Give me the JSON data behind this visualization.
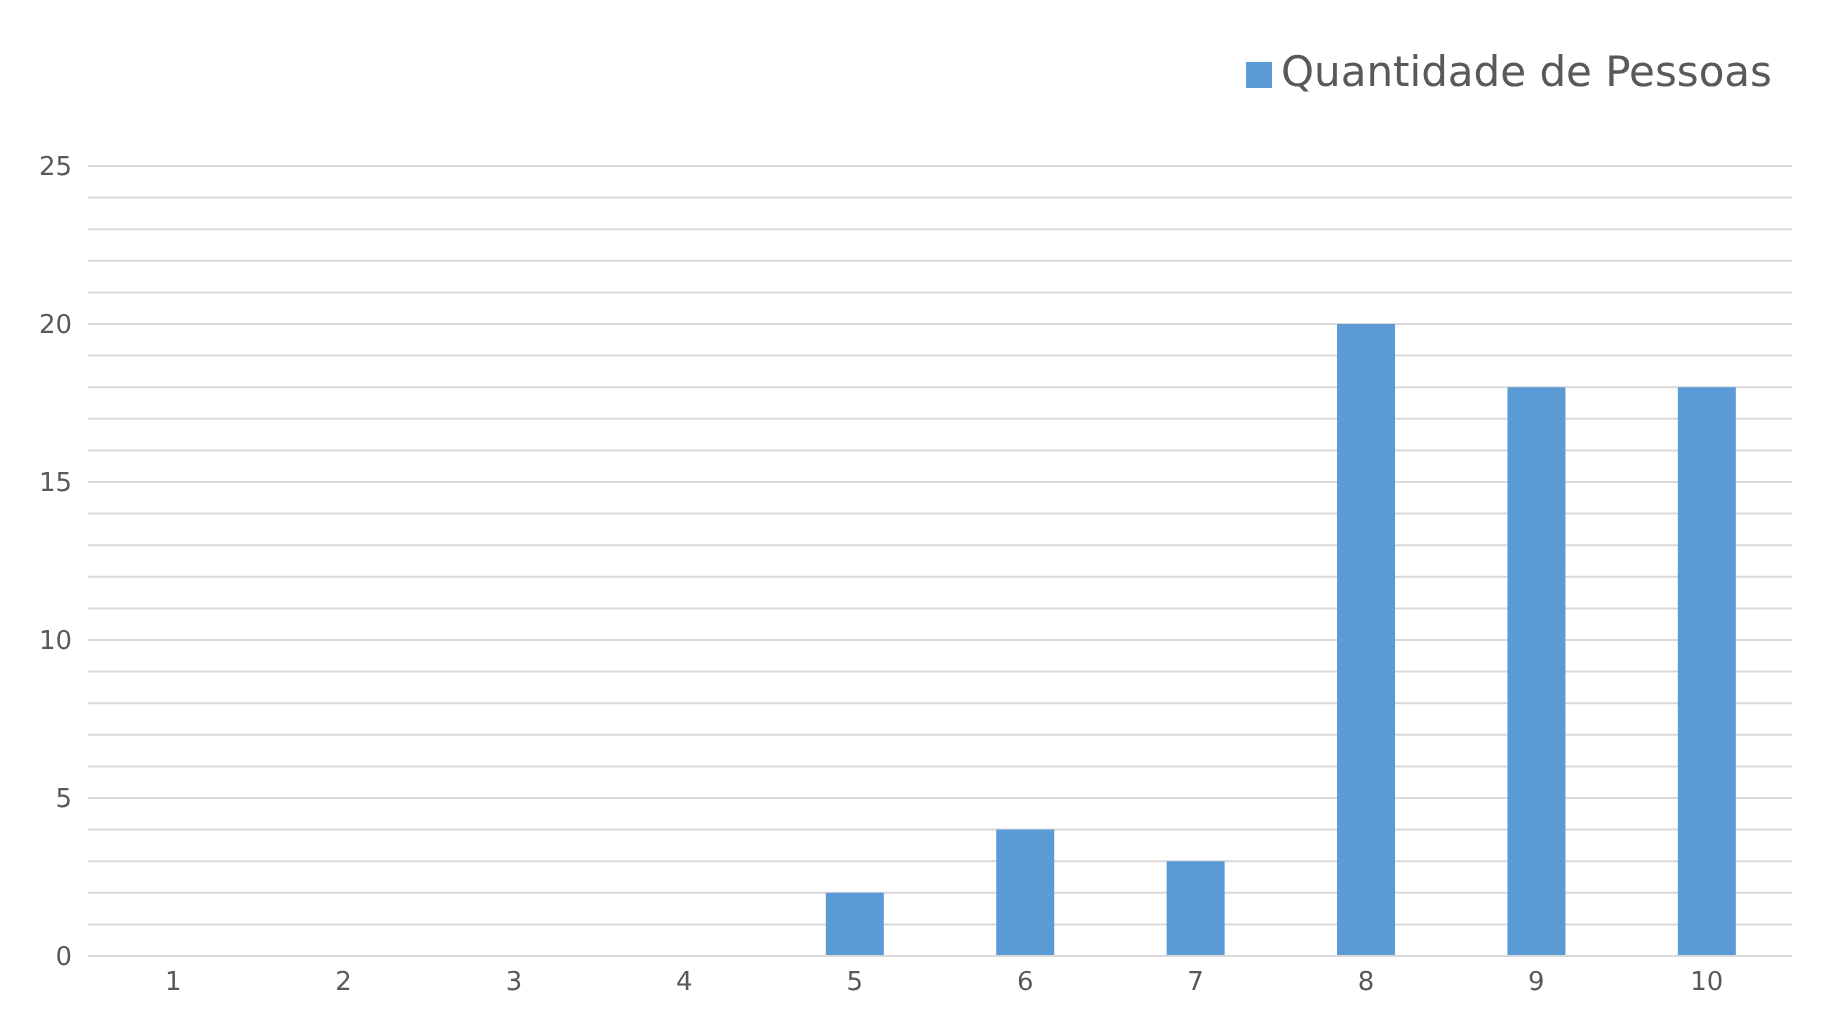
{
  "chart_data": {
    "type": "bar",
    "categories": [
      "1",
      "2",
      "3",
      "4",
      "5",
      "6",
      "7",
      "8",
      "9",
      "10"
    ],
    "series": [
      {
        "name": "Quantidade de Pessoas",
        "color": "#5b9bd5",
        "values": [
          0,
          0,
          0,
          0,
          2,
          4,
          3,
          20,
          18,
          18
        ]
      }
    ],
    "ylim": [
      0,
      25
    ],
    "yticks": [
      0,
      {
        "value": 1,
        "label": null
      },
      {
        "value": 2,
        "label": null
      },
      {
        "value": 3,
        "label": null
      },
      {
        "value": 4,
        "label": null
      },
      5,
      {
        "value": 6,
        "label": null
      },
      {
        "value": 7,
        "label": null
      },
      {
        "value": 8,
        "label": null
      },
      {
        "value": 9,
        "label": null
      },
      10,
      {
        "value": 11,
        "label": null
      },
      {
        "value": 12,
        "label": null
      },
      {
        "value": 13,
        "label": null
      },
      {
        "value": 14,
        "label": null
      },
      15,
      {
        "value": 16,
        "label": null
      },
      {
        "value": 17,
        "label": null
      },
      {
        "value": 18,
        "label": null
      },
      {
        "value": 19,
        "label": null
      },
      20,
      {
        "value": 21,
        "label": null
      },
      {
        "value": 22,
        "label": null
      },
      {
        "value": 23,
        "label": null
      },
      {
        "value": 24,
        "label": null
      },
      25
    ],
    "grid": "y",
    "legend": "top right"
  }
}
